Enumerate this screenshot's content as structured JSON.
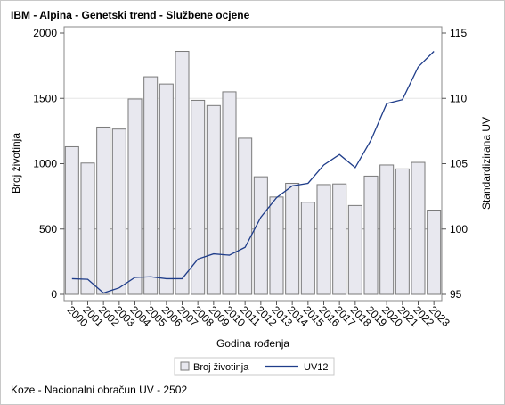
{
  "title": "IBM - Alpina - Genetski trend - Službene ocjene",
  "footnote": "Koze - Nacionalni obračun UV - 2502",
  "chart_data": {
    "type": "bar",
    "title": "IBM - Alpina - Genetski trend - Službene ocjene",
    "xlabel": "Godina rođenja",
    "ylabel": "Broj životinja",
    "y2label": "Standardizirana UV",
    "categories": [
      "2000",
      "2001",
      "2002",
      "2003",
      "2004",
      "2005",
      "2006",
      "2007",
      "2008",
      "2009",
      "2010",
      "2011",
      "2012",
      "2013",
      "2014",
      "2015",
      "2016",
      "2017",
      "2018",
      "2019",
      "2020",
      "2021",
      "2022",
      "2023"
    ],
    "ylim": [
      0,
      2000
    ],
    "yticks": [
      0,
      500,
      1000,
      1500,
      2000
    ],
    "y2lim": [
      95,
      115
    ],
    "y2ticks": [
      95,
      100,
      105,
      110,
      115
    ],
    "grid": "horizontal reference lines at 500 and 1500",
    "legend_position": "bottom",
    "series": [
      {
        "name": "Broj životinja",
        "type": "bar",
        "axis": "left",
        "color": "#e8e8ef",
        "values": [
          1130,
          1005,
          1280,
          1265,
          1495,
          1665,
          1610,
          1860,
          1485,
          1445,
          1550,
          1195,
          900,
          745,
          850,
          705,
          840,
          845,
          680,
          905,
          990,
          960,
          1010,
          645
        ]
      },
      {
        "name": "UV12",
        "type": "line",
        "axis": "right",
        "color": "#1f3d8a",
        "values": [
          96.2,
          96.15,
          95.1,
          95.5,
          96.3,
          96.35,
          96.2,
          96.2,
          97.7,
          98.1,
          98.0,
          98.6,
          100.9,
          102.4,
          103.3,
          103.5,
          104.9,
          105.7,
          104.7,
          106.8,
          109.6,
          109.9,
          112.4,
          113.6
        ]
      }
    ]
  }
}
